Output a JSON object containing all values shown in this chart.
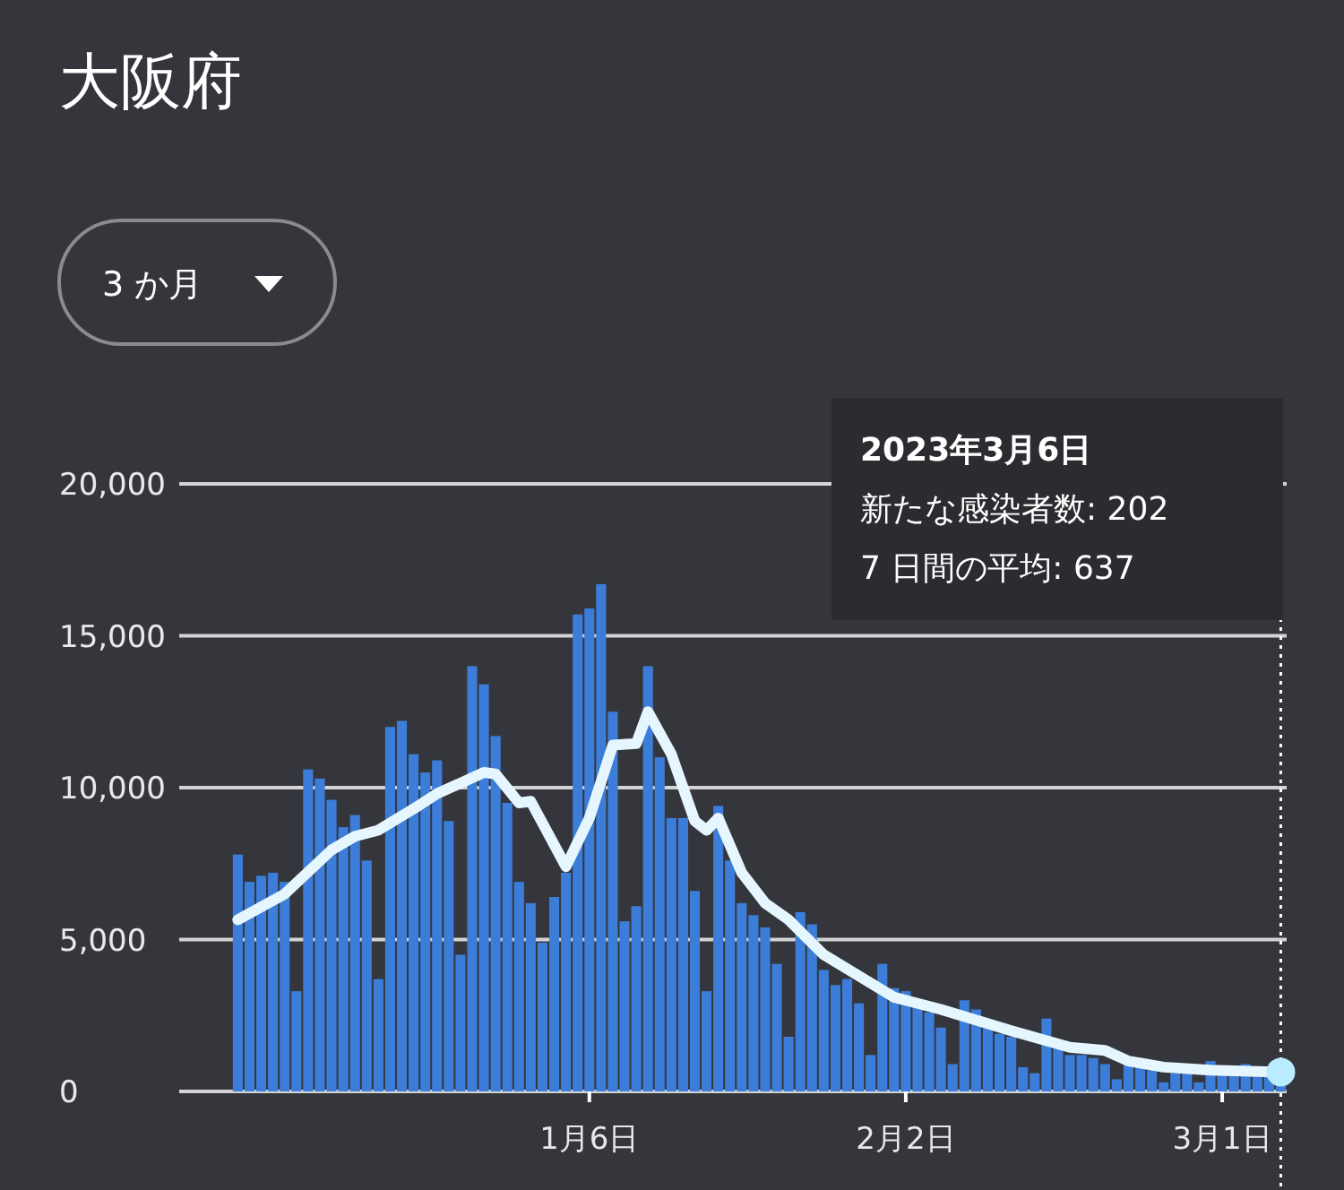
{
  "chart_data": {
    "type": "bar",
    "title": "大阪府",
    "annotations": [
      "3 か月",
      "2023年3月6日",
      "新たな感染者数: 202",
      "7 日間の平均: 637"
    ],
    "xlim": [
      "2022-12-02",
      "2023-03-06T12:00"
    ],
    "ylim": [
      0,
      20000
    ],
    "xticks": [
      {
        "value": "2023-01-06",
        "label": "1月6日"
      },
      {
        "value": "2023-02-02",
        "label": "2月2日"
      },
      {
        "value": "2023-03-01",
        "label": "3月1日"
      }
    ],
    "yticks": [
      0,
      {
        "value": 5000,
        "label": "5,000"
      },
      {
        "value": 10000,
        "label": "10,000"
      },
      {
        "value": 15000,
        "label": "15,000"
      },
      {
        "value": 20000,
        "label": "20,000"
      }
    ],
    "grid": "y",
    "ref_lines": [
      {
        "axis": "x",
        "value": "2023-03-06",
        "color": "#ffffff",
        "line_style": "dotted"
      }
    ],
    "series": [
      {
        "color": "#3b7dd8",
        "x": [
          "2022-12-07",
          "2022-12-08",
          "2022-12-09",
          "2022-12-10",
          "2022-12-11",
          "2022-12-12",
          "2022-12-13",
          "2022-12-14",
          "2022-12-15",
          "2022-12-16",
          "2022-12-17",
          "2022-12-18",
          "2022-12-19",
          "2022-12-20",
          "2022-12-21",
          "2022-12-22",
          "2022-12-23",
          "2022-12-24",
          "2022-12-25",
          "2022-12-26",
          "2022-12-27",
          "2022-12-28",
          "2022-12-29",
          "2022-12-30",
          "2022-12-31",
          "2023-01-01",
          "2023-01-02",
          "2023-01-03",
          "2023-01-04",
          "2023-01-05",
          "2023-01-06",
          "2023-01-07",
          "2023-01-08",
          "2023-01-09",
          "2023-01-10",
          "2023-01-11",
          "2023-01-12",
          "2023-01-13",
          "2023-01-14",
          "2023-01-15",
          "2023-01-16",
          "2023-01-17",
          "2023-01-18",
          "2023-01-19",
          "2023-01-20",
          "2023-01-21",
          "2023-01-22",
          "2023-01-23",
          "2023-01-24",
          "2023-01-25",
          "2023-01-26",
          "2023-01-27",
          "2023-01-28",
          "2023-01-29",
          "2023-01-30",
          "2023-01-31",
          "2023-02-01",
          "2023-02-02",
          "2023-02-03",
          "2023-02-04",
          "2023-02-05",
          "2023-02-06",
          "2023-02-07",
          "2023-02-08",
          "2023-02-09",
          "2023-02-10",
          "2023-02-11",
          "2023-02-12",
          "2023-02-13",
          "2023-02-14",
          "2023-02-15",
          "2023-02-16",
          "2023-02-17",
          "2023-02-18",
          "2023-02-19",
          "2023-02-20",
          "2023-02-21",
          "2023-02-22",
          "2023-02-23",
          "2023-02-24",
          "2023-02-25",
          "2023-02-26",
          "2023-02-27",
          "2023-02-28",
          "2023-03-01",
          "2023-03-02",
          "2023-03-03",
          "2023-03-04",
          "2023-03-05",
          "2023-03-06"
        ],
        "values": [
          7800,
          6900,
          7100,
          7200,
          6900,
          3300,
          10600,
          10300,
          9600,
          8700,
          9100,
          7600,
          3700,
          12000,
          12200,
          11100,
          10500,
          10900,
          8900,
          4500,
          14000,
          13400,
          11700,
          9500,
          6900,
          6200,
          4900,
          6400,
          7200,
          15700,
          15900,
          16700,
          12500,
          5600,
          6100,
          14000,
          11000,
          9000,
          9000,
          6600,
          3300,
          9400,
          7600,
          6200,
          5800,
          5400,
          4200,
          1800,
          5900,
          5500,
          4000,
          3500,
          3700,
          2900,
          1200,
          4200,
          3400,
          3300,
          2900,
          2600,
          2100,
          900,
          3000,
          2700,
          2300,
          1900,
          1800,
          800,
          600,
          2400,
          1600,
          1200,
          1200,
          1100,
          900,
          400,
          1000,
          900,
          700,
          300,
          600,
          600,
          300,
          1000,
          600,
          500,
          900,
          500,
          500,
          202
        ]
      },
      {
        "type": "line",
        "color": "#e6f6ff",
        "x": [
          "2022-12-07",
          "2022-12-11",
          "2022-12-15",
          "2022-12-17",
          "2022-12-19",
          "2022-12-22",
          "2022-12-24",
          "2022-12-26",
          "2022-12-28",
          "2022-12-29",
          "2022-12-31",
          "2023-01-01",
          "2023-01-04",
          "2023-01-06",
          "2023-01-08",
          "2023-01-10",
          "2023-01-11",
          "2023-01-13",
          "2023-01-15",
          "2023-01-16",
          "2023-01-17",
          "2023-01-19",
          "2023-01-21",
          "2023-01-23",
          "2023-01-26",
          "2023-01-29",
          "2023-02-01",
          "2023-02-05",
          "2023-02-11",
          "2023-02-16",
          "2023-02-19",
          "2023-02-21",
          "2023-02-24",
          "2023-02-28",
          "2023-03-06"
        ],
        "values": [
          5650,
          6500,
          7950,
          8400,
          8600,
          9300,
          9800,
          10150,
          10500,
          10450,
          9500,
          9550,
          7400,
          9000,
          11400,
          11450,
          12500,
          11100,
          8900,
          8600,
          9000,
          7200,
          6200,
          5650,
          4500,
          3800,
          3100,
          2700,
          2000,
          1450,
          1350,
          1000,
          800,
          700,
          637
        ]
      },
      {
        "type": "scatter",
        "color": "#b9ecff",
        "marker": "circle",
        "x": [
          "2023-03-06"
        ],
        "values": [
          637
        ]
      }
    ]
  }
}
